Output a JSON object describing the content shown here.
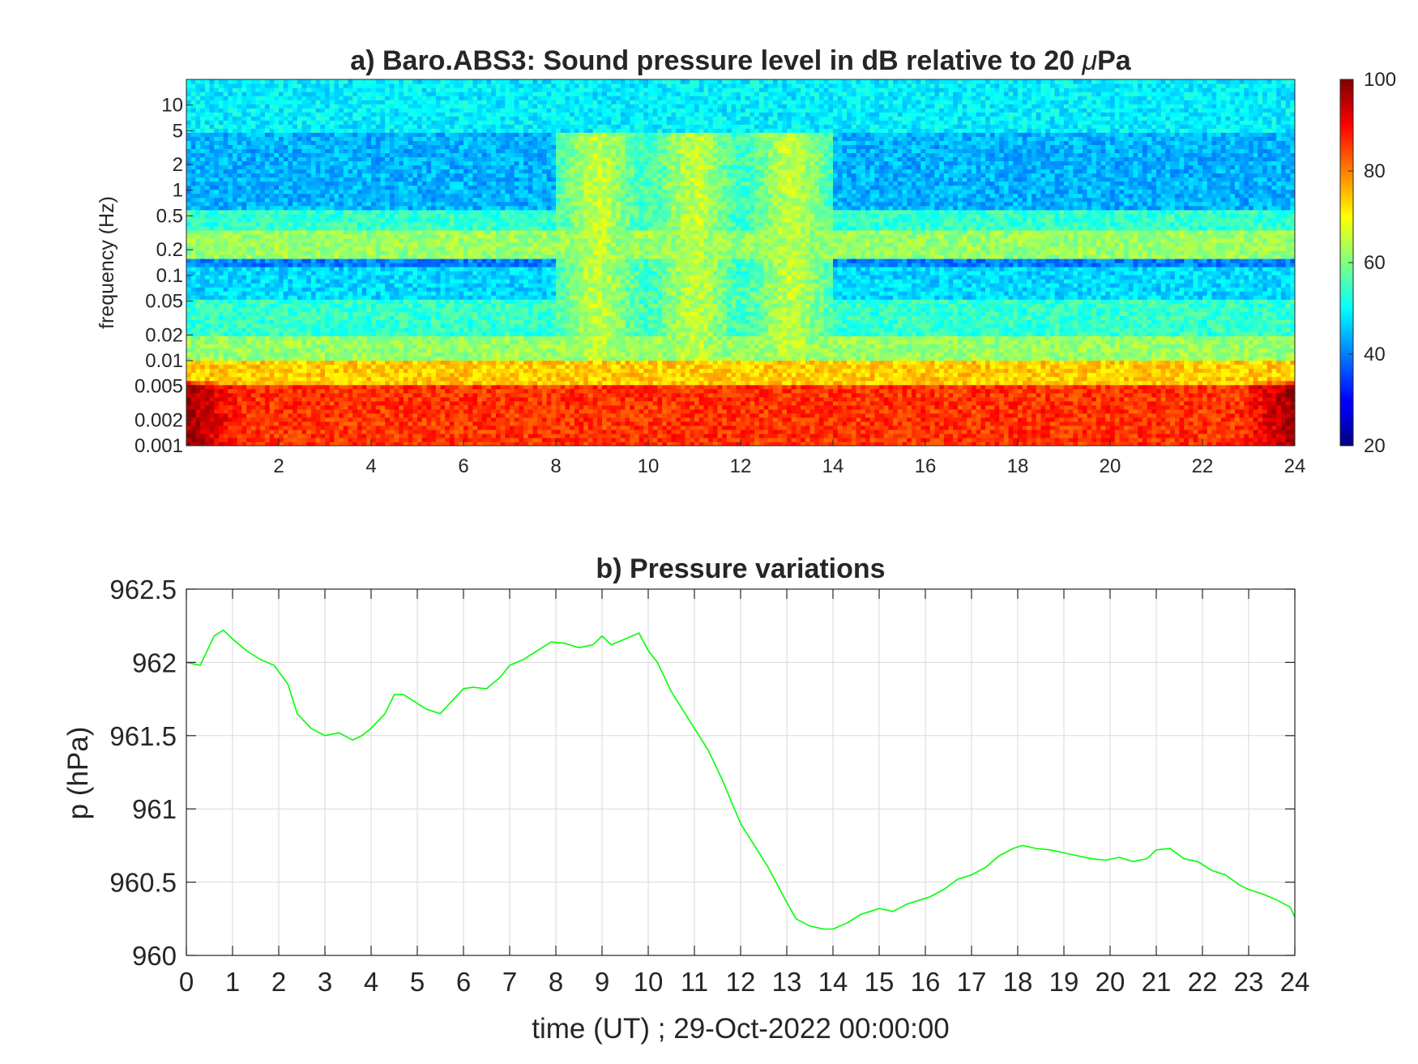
{
  "chart_data": [
    {
      "type": "heatmap",
      "title": "a) Baro.ABS3: Sound pressure level in dB relative to 20 μPa",
      "xlabel": "",
      "ylabel": "frequency (Hz)",
      "xlim": [
        0,
        24
      ],
      "x_ticks": [
        "2",
        "4",
        "6",
        "8",
        "10",
        "12",
        "14",
        "16",
        "18",
        "20",
        "22",
        "24"
      ],
      "y_scale": "log",
      "ylim": [
        0.001,
        20
      ],
      "y_ticks": [
        "10",
        "5",
        "2",
        "1",
        "0.5",
        "0.2",
        "0.1",
        "0.05",
        "0.02",
        "0.01",
        "0.005",
        "0.002",
        "0.001"
      ],
      "colorbar": {
        "range": [
          20,
          100
        ],
        "ticks": [
          "100",
          "80",
          "60",
          "40",
          "20"
        ],
        "colormap": "jet"
      },
      "spectral_bands": [
        {
          "f_range": [
            7,
            20
          ],
          "level_db": 49
        },
        {
          "f_range": [
            1.5,
            5
          ],
          "level_db": 44
        },
        {
          "f_range": [
            0.6,
            1.5
          ],
          "level_db": 44
        },
        {
          "f_range": [
            0.35,
            0.6
          ],
          "level_db": 54
        },
        {
          "f_range": [
            0.16,
            0.35
          ],
          "level_db": 62
        },
        {
          "f_range": [
            0.12,
            0.16
          ],
          "level_db": 40
        },
        {
          "f_range": [
            0.05,
            0.12
          ],
          "level_db": 47
        },
        {
          "f_range": [
            0.02,
            0.05
          ],
          "level_db": 54
        },
        {
          "f_range": [
            0.01,
            0.02
          ],
          "level_db": 62
        },
        {
          "f_range": [
            0.005,
            0.01
          ],
          "level_db": 74
        },
        {
          "f_range": [
            0.001,
            0.005
          ],
          "level_db": 86
        }
      ],
      "broadband_period_hours": [
        8,
        14
      ]
    },
    {
      "type": "line",
      "title": "b) Pressure variations",
      "xlabel": "time (UT) ; 29-Oct-2022 00:00:00",
      "ylabel": "p (hPa)",
      "xlim": [
        0,
        24
      ],
      "ylim": [
        960,
        962.5
      ],
      "grid": true,
      "x_ticks": [
        "0",
        "1",
        "2",
        "3",
        "4",
        "5",
        "6",
        "7",
        "8",
        "9",
        "10",
        "11",
        "12",
        "13",
        "14",
        "15",
        "16",
        "17",
        "18",
        "19",
        "20",
        "21",
        "22",
        "23",
        "24"
      ],
      "y_ticks": [
        "962.5",
        "962",
        "961.5",
        "961",
        "960.5",
        "960"
      ],
      "series": [
        {
          "color": "#00ff00",
          "x": [
            0,
            0.3,
            0.6,
            0.8,
            1,
            1.3,
            1.6,
            1.9,
            2.2,
            2.4,
            2.7,
            3,
            3.3,
            3.6,
            3.8,
            4,
            4.3,
            4.5,
            4.7,
            5,
            5.2,
            5.5,
            5.7,
            6,
            6.2,
            6.5,
            6.8,
            7,
            7.3,
            7.6,
            7.9,
            8.2,
            8.5,
            8.8,
            9,
            9.2,
            9.5,
            9.8,
            10,
            10.2,
            10.5,
            10.8,
            11,
            11.3,
            11.6,
            11.8,
            12,
            12.3,
            12.6,
            12.9,
            13.2,
            13.5,
            13.8,
            14,
            14.3,
            14.6,
            14.8,
            15,
            15.3,
            15.6,
            15.9,
            16.1,
            16.4,
            16.7,
            17,
            17.3,
            17.6,
            17.9,
            18.1,
            18.4,
            18.7,
            19,
            19.3,
            19.6,
            19.9,
            20.2,
            20.5,
            20.8,
            21,
            21.3,
            21.6,
            21.9,
            22.2,
            22.5,
            22.8,
            23,
            23.3,
            23.6,
            23.9,
            24
          ],
          "y": [
            962.0,
            961.98,
            962.18,
            962.22,
            962.16,
            962.08,
            962.02,
            961.98,
            961.85,
            961.65,
            961.55,
            961.5,
            961.52,
            961.47,
            961.5,
            961.55,
            961.65,
            961.78,
            961.78,
            961.72,
            961.68,
            961.65,
            961.72,
            961.82,
            961.83,
            961.82,
            961.9,
            961.98,
            962.02,
            962.08,
            962.14,
            962.13,
            962.1,
            962.12,
            962.18,
            962.12,
            962.16,
            962.2,
            962.08,
            962.0,
            961.8,
            961.65,
            961.55,
            961.4,
            961.2,
            961.05,
            960.9,
            960.75,
            960.6,
            960.42,
            960.25,
            960.2,
            960.18,
            960.18,
            960.22,
            960.28,
            960.3,
            960.32,
            960.3,
            960.35,
            960.38,
            960.4,
            960.45,
            960.52,
            960.55,
            960.6,
            960.68,
            960.73,
            960.75,
            960.73,
            960.72,
            960.7,
            960.68,
            960.66,
            960.65,
            960.67,
            960.64,
            960.66,
            960.72,
            960.73,
            960.66,
            960.64,
            960.58,
            960.55,
            960.48,
            960.45,
            960.42,
            960.38,
            960.33,
            960.26
          ]
        }
      ]
    }
  ]
}
